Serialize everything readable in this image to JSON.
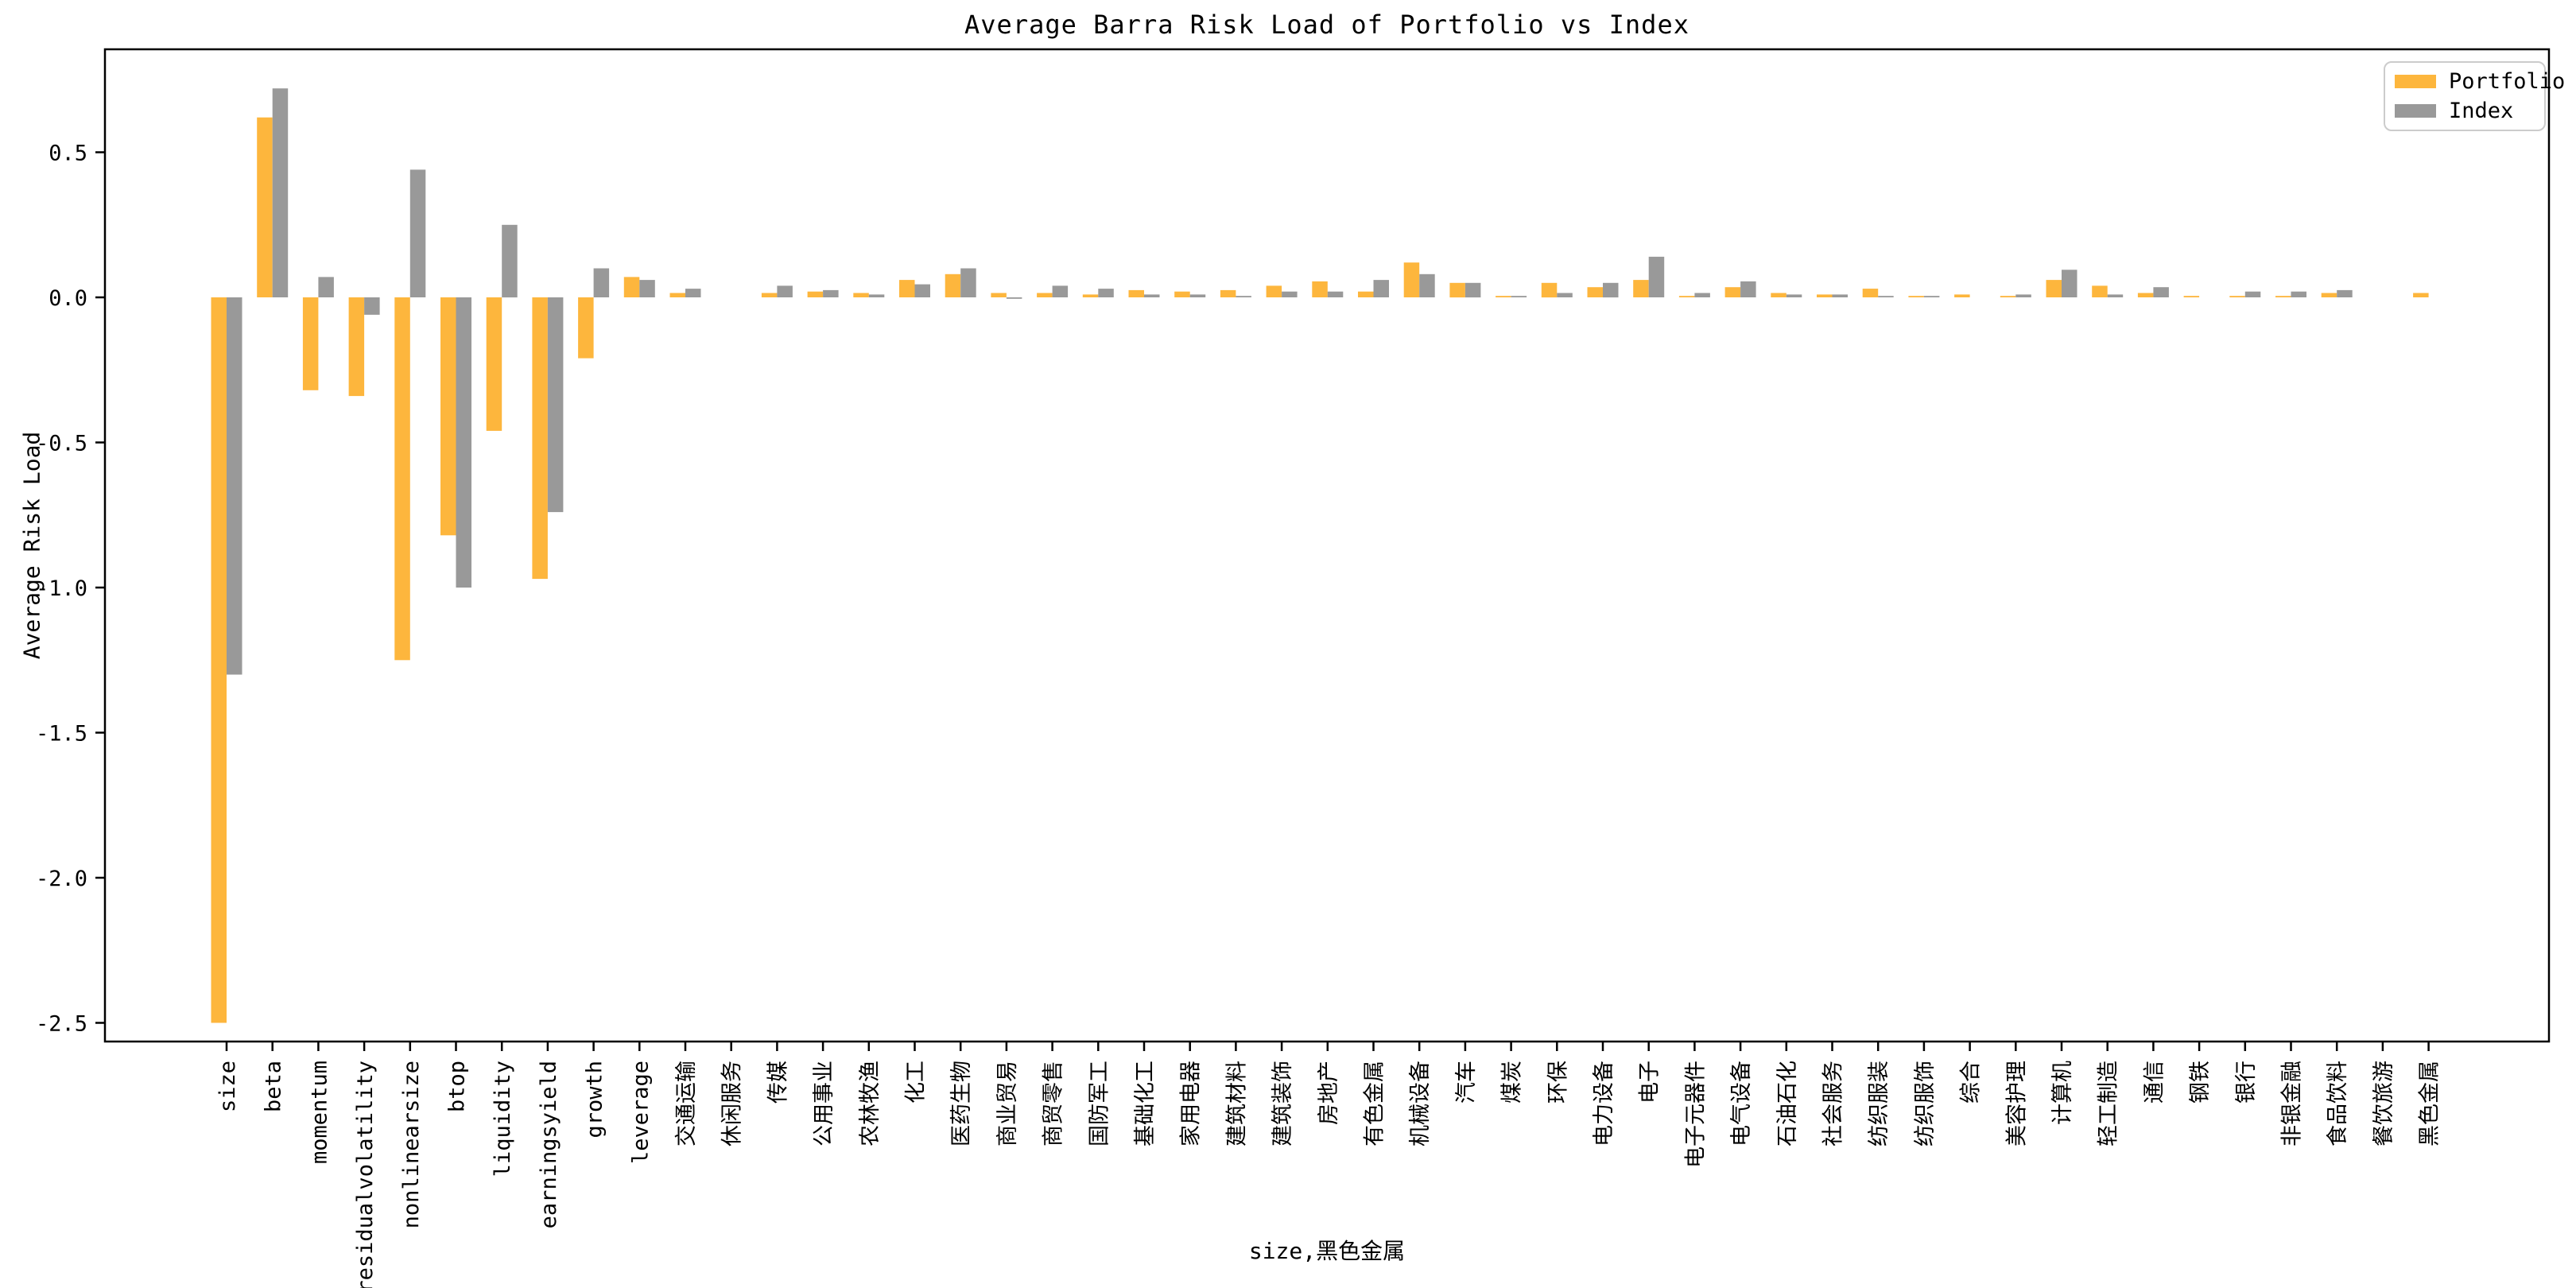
{
  "chart_data": {
    "type": "bar",
    "title": "Average Barra Risk Load of Portfolio vs Index",
    "xlabel": "size,黑色金属",
    "ylabel": "Average Risk Load",
    "grid": false,
    "legend_position": "upper right",
    "ylim": [
      -2.57,
      0.85
    ],
    "y_ticks": [
      0.5,
      0.0,
      -0.5,
      -1.0,
      -1.5,
      -2.0,
      -2.5
    ],
    "y_tick_labels": [
      "0.5",
      "0.0",
      "-0.5",
      "-1.0",
      "-1.5",
      "-2.0",
      "-2.5"
    ],
    "categories": [
      "size",
      "beta",
      "momentum",
      "residualvolatility",
      "nonlinearsize",
      "btop",
      "liquidity",
      "earningsyield",
      "growth",
      "leverage",
      "交通运输",
      "休闲服务",
      "传媒",
      "公用事业",
      "农林牧渔",
      "化工",
      "医药生物",
      "商业贸易",
      "商贸零售",
      "国防军工",
      "基础化工",
      "家用电器",
      "建筑材料",
      "建筑装饰",
      "房地产",
      "有色金属",
      "机械设备",
      "汽车",
      "煤炭",
      "环保",
      "电力设备",
      "电子",
      "电子元器件",
      "电气设备",
      "石油石化",
      "社会服务",
      "纺织服装",
      "纺织服饰",
      "综合",
      "美容护理",
      "计算机",
      "轻工制造",
      "通信",
      "钢铁",
      "银行",
      "非银金融",
      "食品饮料",
      "餐饮旅游",
      "黑色金属"
    ],
    "series": [
      {
        "name": "Portfolio",
        "color": "#fdb63d",
        "values": [
          -2.5,
          0.62,
          -0.32,
          -0.34,
          -1.25,
          -0.82,
          -0.46,
          -0.97,
          -0.21,
          0.07,
          0.015,
          0.0,
          0.015,
          0.02,
          0.015,
          0.06,
          0.08,
          0.015,
          0.015,
          0.01,
          0.025,
          0.02,
          0.025,
          0.04,
          0.055,
          0.02,
          0.12,
          0.05,
          0.005,
          0.05,
          0.035,
          0.06,
          0.005,
          0.035,
          0.015,
          0.01,
          0.03,
          0.005,
          0.01,
          0.005,
          0.06,
          0.04,
          0.015,
          0.005,
          0.005,
          0.005,
          0.015,
          0.0,
          0.015
        ]
      },
      {
        "name": "Index",
        "color": "#999999",
        "values": [
          -1.3,
          0.72,
          0.07,
          -0.06,
          0.44,
          -1.0,
          0.25,
          -0.74,
          0.1,
          0.06,
          0.03,
          0.0,
          0.04,
          0.025,
          0.01,
          0.045,
          0.1,
          -0.005,
          0.04,
          0.03,
          0.01,
          0.01,
          0.005,
          0.02,
          0.02,
          0.06,
          0.08,
          0.05,
          0.005,
          0.015,
          0.05,
          0.14,
          0.015,
          0.055,
          0.01,
          0.01,
          0.005,
          0.005,
          0.0,
          0.01,
          0.095,
          0.01,
          0.035,
          0.0,
          0.02,
          0.02,
          0.025,
          0.0,
          0.0
        ]
      }
    ]
  }
}
